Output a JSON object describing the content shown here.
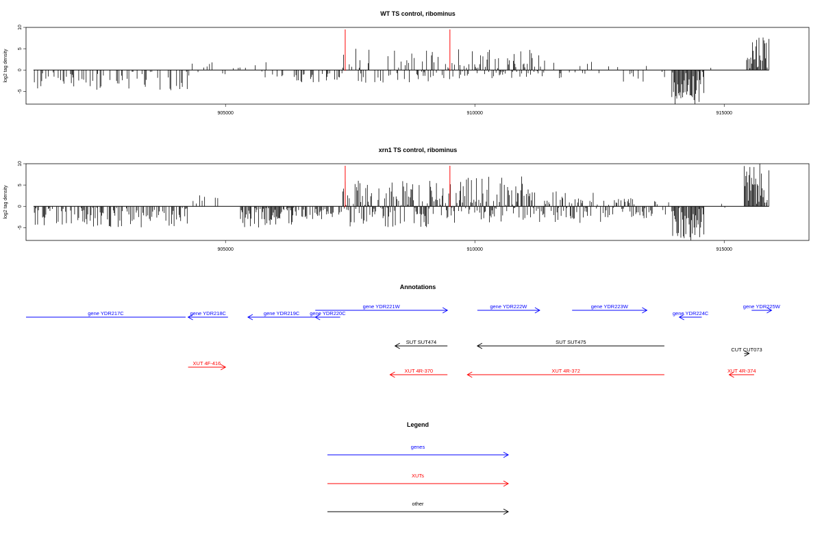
{
  "colors": {
    "genes": "#0000ff",
    "xuts": "#ff0000",
    "other": "#000000",
    "marker": "#ff0000",
    "bars": "#000000"
  },
  "chart_data": [
    {
      "type": "bar",
      "title": "WT TS control, ribominus",
      "ylabel": "log2 tag density",
      "xlim": [
        901000,
        916700
      ],
      "ylim": [
        -8,
        10
      ],
      "yticks": [
        -5,
        0,
        5,
        10
      ],
      "xticks": [
        905000,
        910000,
        915000
      ],
      "marker_lines_x": [
        907400,
        909500
      ],
      "segments": [
        {
          "from": 901150,
          "to": 904300,
          "min": -5,
          "max": 0,
          "density": 0.35
        },
        {
          "from": 904300,
          "to": 905300,
          "min": -1,
          "max": 2,
          "density": 0.2
        },
        {
          "from": 905300,
          "to": 906000,
          "min": -2,
          "max": 2,
          "density": 0.3
        },
        {
          "from": 906000,
          "to": 907350,
          "min": -3,
          "max": 0,
          "density": 0.35
        },
        {
          "from": 907350,
          "to": 909700,
          "min": -3,
          "max": 5,
          "density": 0.6
        },
        {
          "from": 909700,
          "to": 911400,
          "min": -2,
          "max": 5,
          "density": 0.9
        },
        {
          "from": 911400,
          "to": 912600,
          "min": -2,
          "max": 2,
          "density": 0.25
        },
        {
          "from": 912600,
          "to": 913950,
          "min": -3,
          "max": 1,
          "density": 0.3
        },
        {
          "from": 913950,
          "to": 914600,
          "min": -8,
          "max": 0,
          "density": 1.0
        },
        {
          "from": 914600,
          "to": 915400,
          "min": -1,
          "max": 1,
          "density": 0.1
        },
        {
          "from": 915450,
          "to": 915900,
          "min": 0,
          "max": 9,
          "density": 1.0
        }
      ]
    },
    {
      "type": "bar",
      "title": "xrn1 TS control, ribominus",
      "ylabel": "log2 tag density",
      "xlim": [
        901000,
        916700
      ],
      "ylim": [
        -8,
        10
      ],
      "yticks": [
        -5,
        0,
        5,
        10
      ],
      "xticks": [
        905000,
        910000,
        915000
      ],
      "marker_lines_x": [
        907400,
        909500
      ],
      "segments": [
        {
          "from": 901150,
          "to": 904300,
          "min": -5,
          "max": 0,
          "density": 0.6
        },
        {
          "from": 904300,
          "to": 905050,
          "min": 0,
          "max": 3,
          "density": 0.3
        },
        {
          "from": 905300,
          "to": 906350,
          "min": -5,
          "max": 0,
          "density": 0.9
        },
        {
          "from": 906350,
          "to": 907350,
          "min": -3,
          "max": 0,
          "density": 0.6
        },
        {
          "from": 907350,
          "to": 909700,
          "min": -5,
          "max": 6,
          "density": 1.0
        },
        {
          "from": 909700,
          "to": 911400,
          "min": -4,
          "max": 7,
          "density": 1.0
        },
        {
          "from": 911400,
          "to": 912600,
          "min": -4,
          "max": 4,
          "density": 0.8
        },
        {
          "from": 912600,
          "to": 913950,
          "min": -3,
          "max": 2,
          "density": 0.6
        },
        {
          "from": 913950,
          "to": 914600,
          "min": -8,
          "max": 0,
          "density": 1.0
        },
        {
          "from": 914600,
          "to": 915400,
          "min": -1,
          "max": 1,
          "density": 0.1
        },
        {
          "from": 915400,
          "to": 915900,
          "min": 0,
          "max": 10,
          "density": 1.0
        }
      ]
    }
  ],
  "annotations": {
    "title": "Annotations",
    "items": [
      {
        "label": "gene YDR217C",
        "category": "genes",
        "start": 901000,
        "end": 904200,
        "strand": "none",
        "row": 2
      },
      {
        "label": "gene YDR218C",
        "category": "genes",
        "start": 904250,
        "end": 905050,
        "strand": "-",
        "row": 2
      },
      {
        "label": "gene YDR219C",
        "category": "genes",
        "start": 905450,
        "end": 906800,
        "strand": "-",
        "row": 2
      },
      {
        "label": "gene YDR220C",
        "category": "genes",
        "start": 906800,
        "end": 907300,
        "strand": "-",
        "row": 2
      },
      {
        "label": "gene YDR221W",
        "category": "genes",
        "start": 906800,
        "end": 909450,
        "strand": "+",
        "row": 1
      },
      {
        "label": "gene YDR222W",
        "category": "genes",
        "start": 910050,
        "end": 911300,
        "strand": "+",
        "row": 1
      },
      {
        "label": "gene YDR223W",
        "category": "genes",
        "start": 911950,
        "end": 913450,
        "strand": "+",
        "row": 1
      },
      {
        "label": "gene YDR224C",
        "category": "genes",
        "start": 914100,
        "end": 914550,
        "strand": "-",
        "row": 2
      },
      {
        "label": "gene YDR225W",
        "category": "genes",
        "start": 915550,
        "end": 915950,
        "strand": "+",
        "row": 1
      },
      {
        "label": "SUT SUT474",
        "category": "other",
        "start": 908400,
        "end": 909450,
        "strand": "-",
        "row": 3
      },
      {
        "label": "SUT SUT475",
        "category": "other",
        "start": 910050,
        "end": 913800,
        "strand": "-",
        "row": 3
      },
      {
        "label": "CUT CUT073",
        "category": "other",
        "start": 915400,
        "end": 915500,
        "strand": "+",
        "row": 4
      },
      {
        "label": "XUT 4F-416",
        "category": "xuts",
        "start": 904250,
        "end": 905000,
        "strand": "+",
        "row": 5
      },
      {
        "label": "XUT 4R-370",
        "category": "xuts",
        "start": 908300,
        "end": 909450,
        "strand": "-",
        "row": 6
      },
      {
        "label": "XUT 4R-372",
        "category": "xuts",
        "start": 909850,
        "end": 913800,
        "strand": "-",
        "row": 6
      },
      {
        "label": "XUT 4R-374",
        "category": "xuts",
        "start": 915100,
        "end": 915600,
        "strand": "-",
        "row": 6
      }
    ]
  },
  "legend": {
    "title": "Legend",
    "items": [
      {
        "label": "genes",
        "category": "genes"
      },
      {
        "label": "XUTs",
        "category": "xuts"
      },
      {
        "label": "other",
        "category": "other"
      }
    ]
  }
}
